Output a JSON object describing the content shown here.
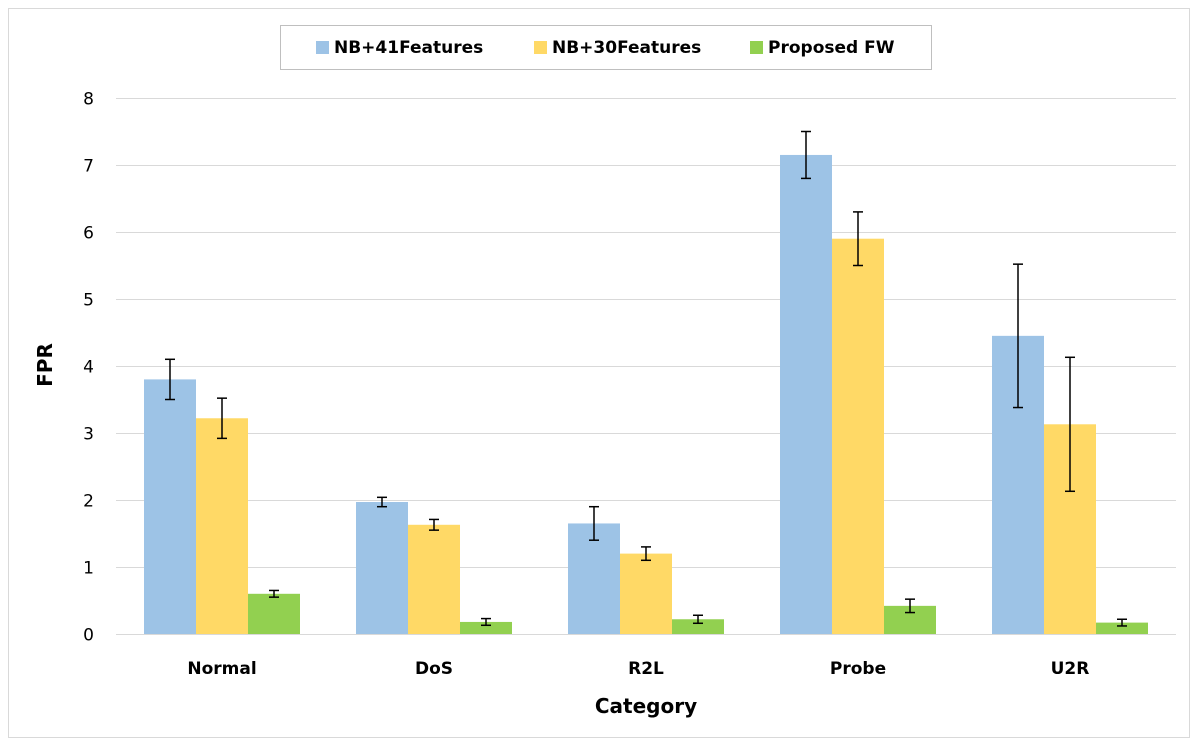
{
  "chart_data": {
    "type": "bar",
    "categories": [
      "Normal",
      "DoS",
      "R2L",
      "Probe",
      "U2R"
    ],
    "series": [
      {
        "name": "NB+41Features",
        "color": "#9dc3e6",
        "values": [
          3.8,
          1.97,
          1.65,
          7.15,
          4.45
        ],
        "error": [
          0.3,
          0.07,
          0.25,
          0.35,
          1.07
        ]
      },
      {
        "name": "NB+30Features",
        "color": "#ffd966",
        "values": [
          3.22,
          1.63,
          1.2,
          5.9,
          3.13
        ],
        "error": [
          0.3,
          0.08,
          0.1,
          0.4,
          1.0
        ]
      },
      {
        "name": "Proposed FW",
        "color": "#92d050",
        "values": [
          0.6,
          0.18,
          0.22,
          0.42,
          0.17
        ],
        "error": [
          0.05,
          0.05,
          0.06,
          0.1,
          0.05
        ]
      }
    ],
    "xlabel": "Category",
    "ylabel": "FPR",
    "ylim": [
      0,
      8
    ],
    "yticks": [
      "0",
      "1",
      "2",
      "3",
      "4",
      "5",
      "6",
      "7",
      "8"
    ],
    "grid": true,
    "legend_position": "top-center"
  }
}
